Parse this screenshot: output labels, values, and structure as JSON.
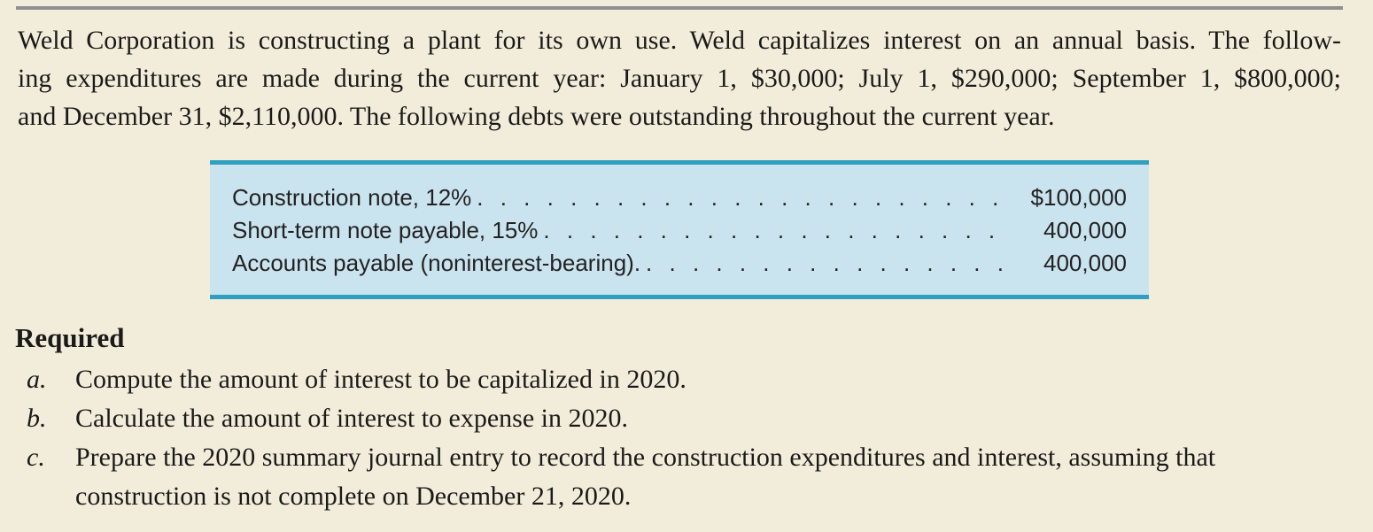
{
  "page": {
    "background_color": "#f2edda",
    "rule_color": "#8f8f8f"
  },
  "intro": {
    "line1": "Weld Corporation is constructing a plant for its own use. Weld capitalizes interest on an annual basis. The follow-",
    "line2": "ing expenditures are made during the current year: January 1, $30,000; July 1, $290,000; September 1, $800,000;",
    "line3": "and December 31, $2,110,000. The following debts were outstanding throughout the current year."
  },
  "debts_table": {
    "background_color": "#c9e4ef",
    "border_color": "#2fa0bf",
    "leader": ". . . . . . . . . . . . . . . . . . . . . . . . . . . . . . . . . . . . . . . . . . . . . . . . . . . . . . . . . . . .",
    "rows": [
      {
        "label": "Construction note, 12%",
        "amount": "$100,000"
      },
      {
        "label": "Short-term note payable, 15%",
        "amount": "400,000"
      },
      {
        "label": "Accounts payable (noninterest-bearing).",
        "amount": "400,000"
      }
    ]
  },
  "required": {
    "heading": "Required",
    "items": [
      {
        "marker": "a.",
        "text": "Compute the amount of interest to be capitalized in 2020."
      },
      {
        "marker": "b.",
        "text": "Calculate the amount of interest to expense in 2020."
      },
      {
        "marker": "c.",
        "text": "Prepare the 2020 summary journal entry to record the construction expenditures and interest, assuming that construction is not complete on December 21, 2020."
      }
    ]
  }
}
